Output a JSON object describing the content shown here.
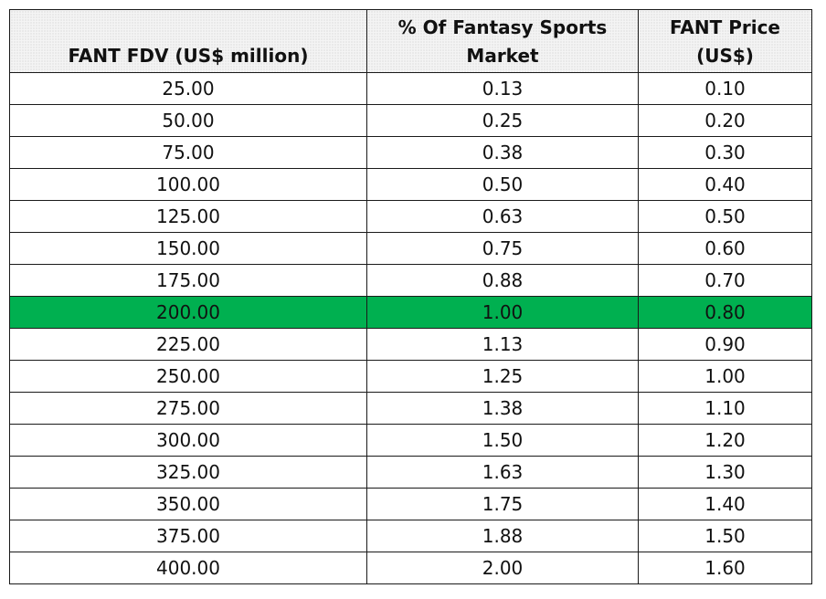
{
  "chart_data": {
    "type": "table",
    "columns": [
      "FANT FDV (US$ million)",
      "% Of Fantasy Sports Market",
      "FANT Price (US$)"
    ],
    "header_lines": [
      [
        "FANT FDV (US$ million)"
      ],
      [
        "% Of Fantasy Sports",
        "Market"
      ],
      [
        "FANT Price",
        "(US$)"
      ]
    ],
    "rows": [
      [
        "25.00",
        "0.13",
        "0.10"
      ],
      [
        "50.00",
        "0.25",
        "0.20"
      ],
      [
        "75.00",
        "0.38",
        "0.30"
      ],
      [
        "100.00",
        "0.50",
        "0.40"
      ],
      [
        "125.00",
        "0.63",
        "0.50"
      ],
      [
        "150.00",
        "0.75",
        "0.60"
      ],
      [
        "175.00",
        "0.88",
        "0.70"
      ],
      [
        "200.00",
        "1.00",
        "0.80"
      ],
      [
        "225.00",
        "1.13",
        "0.90"
      ],
      [
        "250.00",
        "1.25",
        "1.00"
      ],
      [
        "275.00",
        "1.38",
        "1.10"
      ],
      [
        "300.00",
        "1.50",
        "1.20"
      ],
      [
        "325.00",
        "1.63",
        "1.30"
      ],
      [
        "350.00",
        "1.75",
        "1.40"
      ],
      [
        "375.00",
        "1.88",
        "1.50"
      ],
      [
        "400.00",
        "2.00",
        "1.60"
      ]
    ],
    "highlighted_row": 7,
    "highlight_color": "#00b050",
    "border_color": "#1a1a1a",
    "header_background": "#f4f4f4"
  }
}
